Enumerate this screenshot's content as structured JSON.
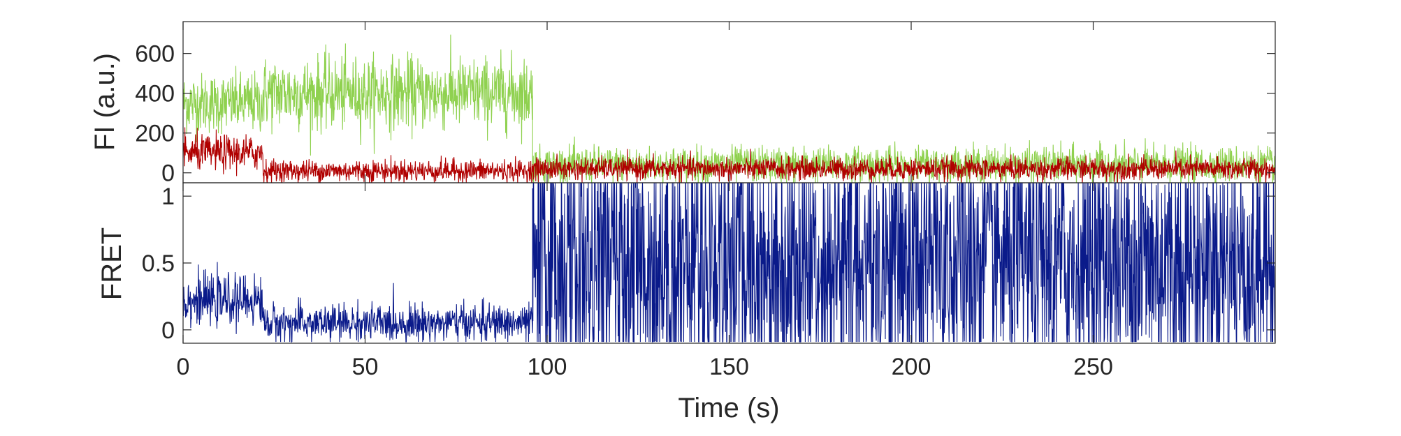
{
  "chart_data": [
    {
      "type": "line",
      "title": "",
      "ylabel": "FI (a.u.)",
      "xlabel": "",
      "xlim": [
        0,
        300
      ],
      "ylim": [
        -50,
        760
      ],
      "yticks": [
        0,
        200,
        400,
        600
      ],
      "ytick_labels": [
        "0",
        "200",
        "400",
        "600"
      ],
      "grid": false,
      "legend": "none",
      "series": [
        {
          "color": "#8fd14f",
          "segments": [
            {
              "x_start": 0,
              "x_end": 22,
              "mean": 350,
              "noise": 75
            },
            {
              "x_start": 22,
              "x_end": 96,
              "mean": 400,
              "noise": 90
            },
            {
              "x_start": 96,
              "x_end": 300,
              "mean": 40,
              "noise": 45
            }
          ]
        },
        {
          "color": "#b00000",
          "segments": [
            {
              "x_start": 0,
              "x_end": 22,
              "mean": 100,
              "noise": 45
            },
            {
              "x_start": 22,
              "x_end": 96,
              "mean": 10,
              "noise": 28
            },
            {
              "x_start": 96,
              "x_end": 300,
              "mean": 20,
              "noise": 28
            }
          ]
        }
      ]
    },
    {
      "type": "line",
      "title": "",
      "ylabel": "FRET",
      "xlabel": "Time (s)",
      "xlim": [
        0,
        300
      ],
      "ylim": [
        -0.1,
        1.1
      ],
      "yticks": [
        0,
        0.5,
        1
      ],
      "ytick_labels": [
        "0",
        "0.5",
        "1"
      ],
      "xticks": [
        0,
        50,
        100,
        150,
        200,
        250
      ],
      "xtick_labels": [
        "0",
        "50",
        "100",
        "150",
        "200",
        "250"
      ],
      "grid": false,
      "legend": "none",
      "series": [
        {
          "color": "#0a1a8a",
          "segments": [
            {
              "x_start": 0,
              "x_end": 22,
              "mean": 0.22,
              "noise": 0.09
            },
            {
              "x_start": 22,
              "x_end": 96,
              "mean": 0.05,
              "noise": 0.07
            },
            {
              "x_start": 96,
              "x_end": 300,
              "mean": 0.5,
              "noise": 0.55
            }
          ]
        }
      ]
    }
  ]
}
